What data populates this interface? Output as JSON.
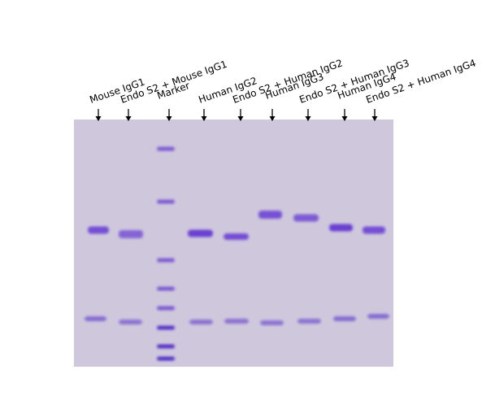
{
  "lanes": [
    {
      "label": "Mouse IgG1"
    },
    {
      "label": "Endo S2 + Mouse IgG1"
    },
    {
      "label": "Marker"
    },
    {
      "label": "Human IgG2"
    },
    {
      "label": "Endo S2 + Human IgG2"
    },
    {
      "label": "Human IgG3"
    },
    {
      "label": "Endo S2 + Human IgG3"
    },
    {
      "label": "Human IgG4"
    },
    {
      "label": "Endo S2 + Human IgG4"
    }
  ]
}
